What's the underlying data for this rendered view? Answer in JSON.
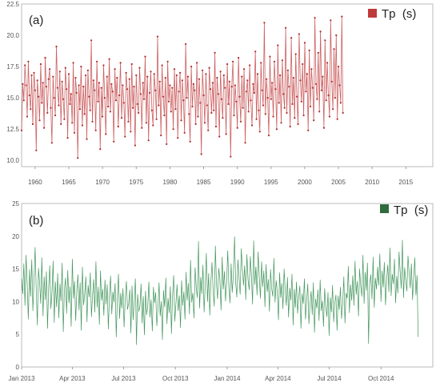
{
  "chart_data": [
    {
      "type": "line",
      "panel_label": "(a)",
      "legend": "Tp  (s)",
      "legend_position": "top-right",
      "color": "#c0393b",
      "markers": true,
      "grid": false,
      "xlim": [
        1958,
        2019
      ],
      "ylim": [
        9.5,
        22.5
      ],
      "x_ticks": [
        "1960",
        "1965",
        "1970",
        "1975",
        "1980",
        "1985",
        "1990",
        "1995",
        "2000",
        "2005",
        "2010",
        "2015"
      ],
      "y_ticks": [
        "10.0",
        "12.5",
        "15.0",
        "17.5",
        "20.0",
        "22.5"
      ],
      "series": [
        {
          "x_start": 1958,
          "x_step": 0.1667,
          "values": [
            12.4,
            16.1,
            14.8,
            17.6,
            16.0,
            13.5,
            17.9,
            15.2,
            14.1,
            16.8,
            12.9,
            17.0,
            15.6,
            10.8,
            16.4,
            15.1,
            13.2,
            17.7,
            14.6,
            16.2,
            12.6,
            18.2,
            15.9,
            13.8,
            16.5,
            17.3,
            14.2,
            11.4,
            16.7,
            15.0,
            13.6,
            19.1,
            15.8,
            14.4,
            17.1,
            12.9,
            16.3,
            14.9,
            13.3,
            17.4,
            15.7,
            11.8,
            16.9,
            14.5,
            15.3,
            13.0,
            17.8,
            12.2,
            16.6,
            15.4,
            10.2,
            16.0,
            14.1,
            17.5,
            12.8,
            15.9,
            13.7,
            16.8,
            11.7,
            17.2,
            15.1,
            14.0,
            19.6,
            13.1,
            16.4,
            15.6,
            12.4,
            17.9,
            14.7,
            16.2,
            10.9,
            15.8,
            13.5,
            17.6,
            15.0,
            12.1,
            16.7,
            14.3,
            18.1,
            13.9,
            16.1,
            15.5,
            11.5,
            17.3,
            14.8,
            16.6,
            12.7,
            15.2,
            17.8,
            13.4,
            16.0,
            14.6,
            11.9,
            17.0,
            15.7,
            13.1,
            16.5,
            12.3,
            17.7,
            14.2,
            15.9,
            11.2,
            16.8,
            14.5,
            13.8,
            17.4,
            15.3,
            12.6,
            16.2,
            14.9,
            18.3,
            13.0,
            16.7,
            11.6,
            15.4,
            17.1,
            14.0,
            12.8,
            16.9,
            15.6,
            13.3,
            19.9,
            14.4,
            16.3,
            12.0,
            17.6,
            15.1,
            13.6,
            16.6,
            11.3,
            17.9,
            14.7,
            16.0,
            13.9,
            15.8,
            12.5,
            17.3,
            14.1,
            16.8,
            11.8,
            15.5,
            17.0,
            13.2,
            16.4,
            14.8,
            12.2,
            19.3,
            15.0,
            16.7,
            13.7,
            11.5,
            17.5,
            14.3,
            16.1,
            15.6,
            12.9,
            17.8,
            13.5,
            16.5,
            14.6,
            10.5,
            17.2,
            15.2,
            13.0,
            16.9,
            14.4,
            12.4,
            17.4,
            15.7,
            13.8,
            16.2,
            14.0,
            18.6,
            12.7,
            16.6,
            15.3,
            11.9,
            17.1,
            14.9,
            13.4,
            16.8,
            15.8,
            12.1,
            17.7,
            14.5,
            16.3,
            10.3,
            15.9,
            17.9,
            13.6,
            16.0,
            14.7,
            12.6,
            18.2,
            15.1,
            13.1,
            16.7,
            14.2,
            17.3,
            11.4,
            15.5,
            16.4,
            13.9,
            17.6,
            14.8,
            12.8,
            16.1,
            15.4,
            18.7,
            13.3,
            16.9,
            14.0,
            12.3,
            17.8,
            15.6,
            14.4,
            21.0,
            13.7,
            16.5,
            15.0,
            12.0,
            18.3,
            14.9,
            16.2,
            13.5,
            17.9,
            15.7,
            12.5,
            19.2,
            14.6,
            16.8,
            13.0,
            18.0,
            15.3,
            14.2,
            20.6,
            13.8,
            17.2,
            15.9,
            12.7,
            19.8,
            14.5,
            16.6,
            13.4,
            18.5,
            15.1,
            12.9,
            20.1,
            16.4,
            14.7,
            17.7,
            13.6,
            19.4,
            15.5,
            16.9,
            12.4,
            18.8,
            14.3,
            17.3,
            15.8,
            13.2,
            21.4,
            16.1,
            14.9,
            18.6,
            13.9,
            20.3,
            15.6,
            16.7,
            12.6,
            19.6,
            14.8,
            17.8,
            15.2,
            13.5,
            21.2,
            16.3,
            14.1,
            18.9,
            15.0,
            20.0,
            13.3,
            17.5,
            16.0,
            14.6,
            21.5,
            13.8
          ]
        }
      ]
    },
    {
      "type": "line",
      "panel_label": "(b)",
      "legend": "Tp  (s)",
      "legend_position": "top-right",
      "color": "#2e8b4a",
      "markers": false,
      "grid": false,
      "xlim": [
        0,
        730
      ],
      "ylim": [
        0,
        25
      ],
      "x_ticks": [
        "Jan 2013",
        "Apr 2013",
        "Jul 2013",
        "Oct 2013",
        "Jan 2014",
        "Apr 2014",
        "Jul 2014",
        "Oct 2014"
      ],
      "x_tick_days": [
        0,
        90,
        181,
        273,
        365,
        455,
        546,
        638
      ],
      "y_ticks": [
        "0",
        "5",
        "10",
        "15",
        "20",
        "25"
      ],
      "series": [
        {
          "x_start": 0,
          "x_step": 2,
          "values": [
            13.5,
            11.2,
            15.8,
            9.4,
            17.1,
            12.6,
            7.3,
            14.9,
            10.8,
            16.4,
            8.6,
            13.2,
            18.3,
            11.7,
            6.4,
            15.1,
            12.9,
            9.7,
            16.7,
            7.8,
            13.8,
            10.3,
            14.6,
            5.9,
            12.1,
            15.5,
            8.9,
            11.4,
            16.2,
            6.8,
            13.0,
            9.2,
            14.3,
            7.5,
            12.7,
            10.1,
            15.9,
            5.4,
            11.8,
            13.6,
            8.2,
            14.8,
            9.8,
            12.3,
            6.2,
            16.5,
            10.5,
            13.1,
            7.1,
            11.6,
            14.1,
            8.7,
            12.9,
            5.6,
            15.3,
            9.5,
            11.2,
            13.8,
            6.9,
            12.5,
            10.7,
            14.4,
            7.7,
            11.0,
            13.4,
            8.4,
            16.1,
            9.1,
            12.2,
            6.5,
            14.7,
            10.2,
            11.9,
            7.9,
            13.3,
            9.6,
            12.6,
            5.8,
            10.9,
            13.9,
            8.1,
            11.5,
            9.9,
            12.8,
            4.6,
            10.4,
            14.2,
            7.4,
            11.3,
            9.0,
            12.0,
            6.1,
            10.6,
            13.1,
            8.8,
            9.7,
            11.8,
            5.2,
            12.4,
            7.2,
            10.1,
            13.5,
            3.4,
            11.1,
            8.5,
            9.3,
            12.7,
            6.7,
            10.8,
            4.9,
            11.6,
            8.0,
            9.5,
            13.0,
            7.6,
            10.3,
            5.5,
            12.2,
            9.8,
            11.4,
            6.3,
            8.9,
            12.9,
            7.8,
            10.0,
            4.2,
            11.7,
            9.2,
            13.6,
            6.6,
            10.5,
            8.3,
            12.3,
            5.1,
            11.0,
            14.0,
            7.0,
            9.6,
            12.6,
            8.6,
            10.9,
            6.0,
            13.2,
            9.4,
            11.5,
            7.3,
            14.5,
            10.2,
            12.8,
            8.1,
            16.3,
            9.9,
            11.3,
            7.5,
            15.2,
            12.1,
            10.6,
            19.2,
            9.0,
            13.7,
            11.2,
            15.6,
            8.4,
            12.4,
            17.4,
            10.0,
            14.3,
            7.9,
            13.1,
            16.0,
            11.6,
            9.3,
            18.5,
            12.7,
            10.4,
            15.1,
            13.5,
            8.7,
            16.8,
            11.9,
            14.6,
            10.1,
            13.0,
            17.8,
            12.2,
            9.8,
            15.8,
            11.4,
            14.1,
            19.9,
            12.9,
            10.7,
            16.4,
            13.6,
            11.1,
            18.1,
            14.8,
            12.5,
            15.5,
            10.3,
            17.2,
            13.3,
            11.8,
            16.9,
            14.0,
            9.6,
            19.3,
            12.6,
            15.3,
            11.0,
            17.6,
            13.9,
            10.5,
            16.1,
            12.3,
            14.7,
            9.2,
            15.7,
            11.5,
            13.4,
            8.5,
            14.9,
            12.0,
            10.8,
            16.6,
            9.9,
            13.2,
            11.3,
            7.2,
            14.4,
            10.6,
            12.8,
            8.9,
            15.0,
            11.7,
            9.4,
            13.7,
            7.6,
            12.1,
            10.2,
            14.2,
            6.4,
            11.9,
            9.1,
            13.0,
            8.2,
            10.7,
            12.4,
            5.9,
            11.2,
            9.7,
            13.5,
            7.3,
            10.0,
            12.7,
            6.6,
            9.5,
            11.6,
            8.0,
            12.9,
            5.3,
            10.4,
            9.0,
            11.8,
            7.1,
            13.3,
            8.6,
            10.1,
            6.2,
            12.0,
            9.3,
            7.7,
            11.4,
            4.8,
            10.6,
            8.4,
            12.5,
            6.9,
            9.8,
            11.0,
            5.6,
            10.9,
            8.8,
            12.2,
            7.4,
            9.6,
            13.8,
            6.7,
            11.3,
            10.5,
            15.4,
            8.3,
            12.6,
            10.2,
            14.0,
            9.4,
            16.2,
            11.1,
            13.1,
            7.8,
            15.0,
            12.3,
            10.8,
            17.1,
            9.7,
            14.5,
            11.7,
            15.9,
            3.6,
            12.8,
            14.1,
            10.4,
            16.8,
            9.1,
            13.6,
            11.9,
            15.3,
            12.5,
            17.3,
            10.0,
            14.7,
            12.2,
            16.0,
            9.5,
            13.4,
            15.6,
            11.5,
            18.2,
            10.9,
            14.2,
            12.7,
            16.5,
            9.8,
            13.9,
            11.3,
            17.6,
            14.6,
            12.0,
            19.4,
            10.6,
            15.2,
            13.3,
            11.6,
            17.0,
            14.4,
            12.1,
            15.8,
            10.3,
            13.7,
            16.7,
            11.0,
            14.0,
            4.6
          ]
        }
      ]
    }
  ]
}
